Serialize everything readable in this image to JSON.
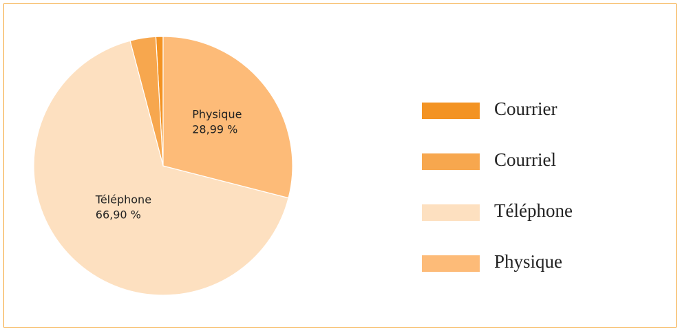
{
  "chart_data": {
    "type": "pie",
    "categories": [
      "Courrier",
      "Courriel",
      "Téléphone",
      "Physique"
    ],
    "values": [
      0.9,
      3.21,
      66.9,
      28.99
    ],
    "value_labels": [
      null,
      null,
      "66,90 %",
      "28,99 %"
    ],
    "colors": [
      "#f39323",
      "#f7a74e",
      "#fde0c0",
      "#fdbb78"
    ],
    "direction": "counterclockwise",
    "legend": "right"
  }
}
